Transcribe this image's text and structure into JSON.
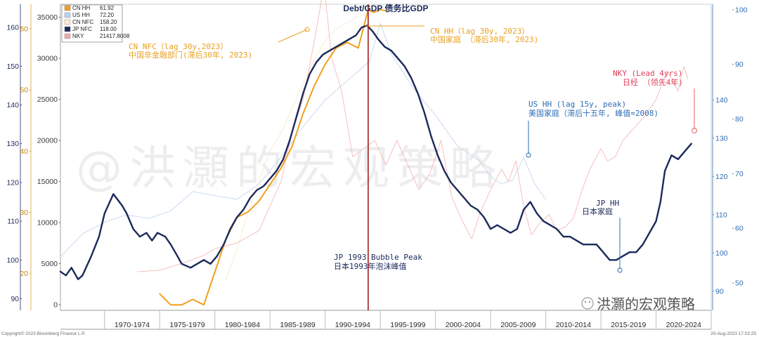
{
  "chart_data": {
    "type": "line",
    "title": "Debt/GDP 债务比GDP",
    "x_range": [
      1966,
      2025
    ],
    "x_period_labels": [
      "1970-1974",
      "1975-1979",
      "1980-1984",
      "1985-1989",
      "1990-1994",
      "1995-1999",
      "2000-2004",
      "2005-2009",
      "2010-2014",
      "2015-2019",
      "2020-2024"
    ],
    "axes": {
      "jp_nfc_axis": {
        "ticks": [
          90,
          100,
          110,
          120,
          130,
          140,
          150,
          160
        ],
        "range": [
          87,
          166
        ],
        "color": "#1b2a5a"
      },
      "cn_nfc_axis": {
        "ticks": [
          20,
          30,
          40,
          50,
          60
        ],
        "range": [
          14,
          64
        ],
        "color": "#e8a020"
      },
      "nky_axis": {
        "ticks": [
          0,
          5000,
          10000,
          15000,
          20000,
          25000,
          30000,
          35000
        ],
        "range": [
          -700,
          36600
        ],
        "color": "#6a6a6a"
      },
      "us_hh_axis": {
        "ticks": [
          90,
          100,
          110,
          120,
          130,
          140
        ],
        "range": [
          85,
          165
        ],
        "color": "#2f6db5"
      },
      "cn_hh_axis": {
        "ticks": [
          50,
          60,
          70,
          80,
          90,
          100
        ],
        "range": [
          45,
          101
        ],
        "color": "#2f6db5"
      }
    },
    "legend": [
      {
        "name": "CN HH",
        "value": "61.92",
        "color": "#f0a020"
      },
      {
        "name": "US HH",
        "value": "72.20",
        "color": "#bcd2ec"
      },
      {
        "name": "CN NFC",
        "value": "158.20",
        "color": "#fdebd0"
      },
      {
        "name": "JP NFC",
        "value": "118.00",
        "color": "#1b2a5a"
      },
      {
        "name": "NKY",
        "value": "21417.8008",
        "color": "#f2aaaa"
      }
    ],
    "series": [
      {
        "name": "JP NFC",
        "color": "#1b2a5a",
        "axis": "jp_nfc_axis",
        "x": [
          1966,
          1966.5,
          1967,
          1967.6,
          1968,
          1968.8,
          1969.5,
          1970,
          1970.8,
          1971.6,
          1972,
          1972.6,
          1973.2,
          1973.8,
          1974.3,
          1974.8,
          1975.5,
          1976,
          1976.6,
          1977,
          1977.8,
          1978.4,
          1979,
          1979.6,
          1980.2,
          1980.8,
          1981.4,
          1982,
          1982.6,
          1983.2,
          1983.8,
          1984.4,
          1985,
          1985.6,
          1986.2,
          1986.8,
          1987.4,
          1988,
          1988.6,
          1989.2,
          1989.8,
          1990.4,
          1991,
          1991.6,
          1992.2,
          1992.8,
          1993.3,
          1993.8,
          1994.3,
          1994.8,
          1995.4,
          1996,
          1996.6,
          1997.2,
          1997.8,
          1998.4,
          1999,
          1999.6,
          2000.2,
          2000.8,
          2001.4,
          2002,
          2002.6,
          2003.2,
          2003.8,
          2004.4,
          2005,
          2005.6,
          2006.2,
          2006.8,
          2007.4,
          2008,
          2008.6,
          2009.2,
          2009.8,
          2010.4,
          2011,
          2011.6,
          2012.2,
          2012.8,
          2013.4,
          2014,
          2014.6,
          2015.2,
          2015.8,
          2016.4,
          2017,
          2017.6,
          2018.2,
          2018.8,
          2019.4,
          2020,
          2020.4,
          2020.8,
          2021.4,
          2022,
          2022.6,
          2023.2
        ],
        "values": [
          97,
          96,
          98,
          95,
          96,
          101,
          106,
          112,
          117,
          114,
          112,
          108,
          106,
          107,
          105,
          107,
          106,
          104,
          101,
          99,
          98,
          99,
          100,
          99,
          101,
          104,
          108,
          111,
          113,
          116,
          118,
          119,
          121,
          123,
          126,
          131,
          137,
          143,
          148,
          151,
          153,
          154,
          155,
          156,
          157,
          158,
          160,
          160.5,
          159,
          157,
          155,
          154,
          152,
          150,
          147,
          143,
          138,
          132,
          127,
          123,
          120,
          118,
          116,
          114,
          113,
          111,
          108,
          109,
          108,
          107,
          108,
          113,
          115,
          112,
          110,
          109,
          108,
          106,
          106,
          105,
          104,
          104,
          104,
          102,
          100,
          100,
          101,
          102,
          102,
          104,
          107,
          110,
          115,
          123,
          127,
          126,
          128,
          130
        ]
      },
      {
        "name": "CN HH",
        "color": "#f0a020",
        "axis": "cn_hh_axis",
        "x": [
          1975,
          1976,
          1977,
          1978,
          1979,
          1980,
          1981,
          1982,
          1983,
          1984,
          1985,
          1986,
          1987,
          1988,
          1989,
          1990,
          1991,
          1992,
          1993,
          1993.9,
          1994.4,
          1995,
          1995.5
        ],
        "values": [
          48,
          46,
          46,
          47,
          46,
          52,
          58,
          62,
          63,
          65,
          68,
          71,
          75,
          81,
          86,
          90,
          93,
          94,
          93,
          100,
          99.5,
          100,
          99.8
        ]
      },
      {
        "name": "US HH",
        "color": "#bcd2ec",
        "axis": "us_hh_axis",
        "x": [
          1966,
          1968,
          1970,
          1972,
          1974,
          1976,
          1978,
          1980,
          1982,
          1984,
          1986,
          1988,
          1990,
          1992,
          1994,
          1995,
          1996,
          1998,
          2000,
          2002,
          2004,
          2005,
          2006,
          2007,
          2008,
          2009,
          2010
        ],
        "values": [
          99,
          105,
          108,
          110,
          109,
          111,
          116,
          115,
          114,
          118,
          125,
          133,
          140,
          145,
          150,
          160,
          152,
          143,
          136,
          128,
          124,
          120,
          118,
          119,
          125,
          118,
          114
        ]
      },
      {
        "name": "CN NFC",
        "color": "#fdebd0",
        "axis": "cn_nfc_axis",
        "x": [
          1981,
          1982,
          1983,
          1984,
          1985,
          1986,
          1987,
          1988,
          1989,
          1990,
          1991,
          1992,
          1993
        ],
        "values": [
          19,
          24,
          30,
          35,
          40,
          43,
          47,
          51,
          55,
          58,
          60,
          61,
          62
        ]
      },
      {
        "name": "NKY",
        "color": "#f2aaaa",
        "axis": "nky_axis",
        "x": [
          1973,
          1975,
          1977,
          1979,
          1980,
          1982,
          1984,
          1985,
          1986,
          1987,
          1988,
          1989,
          1989.9,
          1990.6,
          1991.5,
          1992.5,
          1993.5,
          1994.5,
          1995.5,
          1996.5,
          1997.5,
          1998.5,
          1999.5,
          2000.5,
          2001.5,
          2002.5,
          2003.3,
          2004,
          2005,
          2006,
          2006.6,
          2007.3,
          2008,
          2008.7,
          2009.5,
          2010.3,
          2011,
          2011.8,
          2012.5,
          2013.3,
          2014,
          2015,
          2015.6,
          2016.3,
          2017,
          2018,
          2019,
          2020,
          2021,
          2022,
          2022.5,
          2022.9
        ],
        "values": [
          4000,
          4200,
          5000,
          6000,
          6800,
          7500,
          9000,
          12000,
          15000,
          21000,
          25000,
          32000,
          38900,
          30000,
          26000,
          18000,
          19000,
          20000,
          17000,
          20000,
          17000,
          14000,
          16000,
          20000,
          13000,
          10000,
          8000,
          11000,
          14000,
          16500,
          15000,
          17500,
          12000,
          8500,
          10000,
          11000,
          9000,
          9500,
          10500,
          14000,
          16500,
          19000,
          17500,
          18000,
          20000,
          21500,
          23000,
          25000,
          28500,
          26000,
          29000,
          27500
        ]
      }
    ],
    "annotations": {
      "cn_nfc": {
        "line1": "CN NFC（lag 30y,2023）",
        "line2": "中国非金融部门(滞后30年, 2023)"
      },
      "cn_hh": {
        "line1": "CN HH（lag 30y, 2023）",
        "line2": "中国家庭 （滞后30年, 2023)"
      },
      "nky": {
        "line1": "NKY (Lead 4yrs)",
        "line2": "日经 （领先4年)"
      },
      "us_hh": {
        "line1": "US HH (lag 15y, peak)",
        "line2": "美国家庭（滞后十五年, 峰值=2008)"
      },
      "jp_hh": {
        "line1": "JP HH",
        "line2": "日本家庭"
      },
      "bubble": {
        "line1": "JP 1993 Bubble Peak",
        "line2": "日本1993年泡沫峰值"
      }
    },
    "reference_line": {
      "label": "JP 1993 Bubble Peak",
      "x": 1993.9
    }
  },
  "watermark": "@洪灝的宏观策略",
  "brand": "洪灝的宏观策略",
  "footer": {
    "copyright": "Copyright© 2023 Bloomberg Finance L.P.",
    "timestamp": "20-Aug-2023 17:02:25"
  }
}
